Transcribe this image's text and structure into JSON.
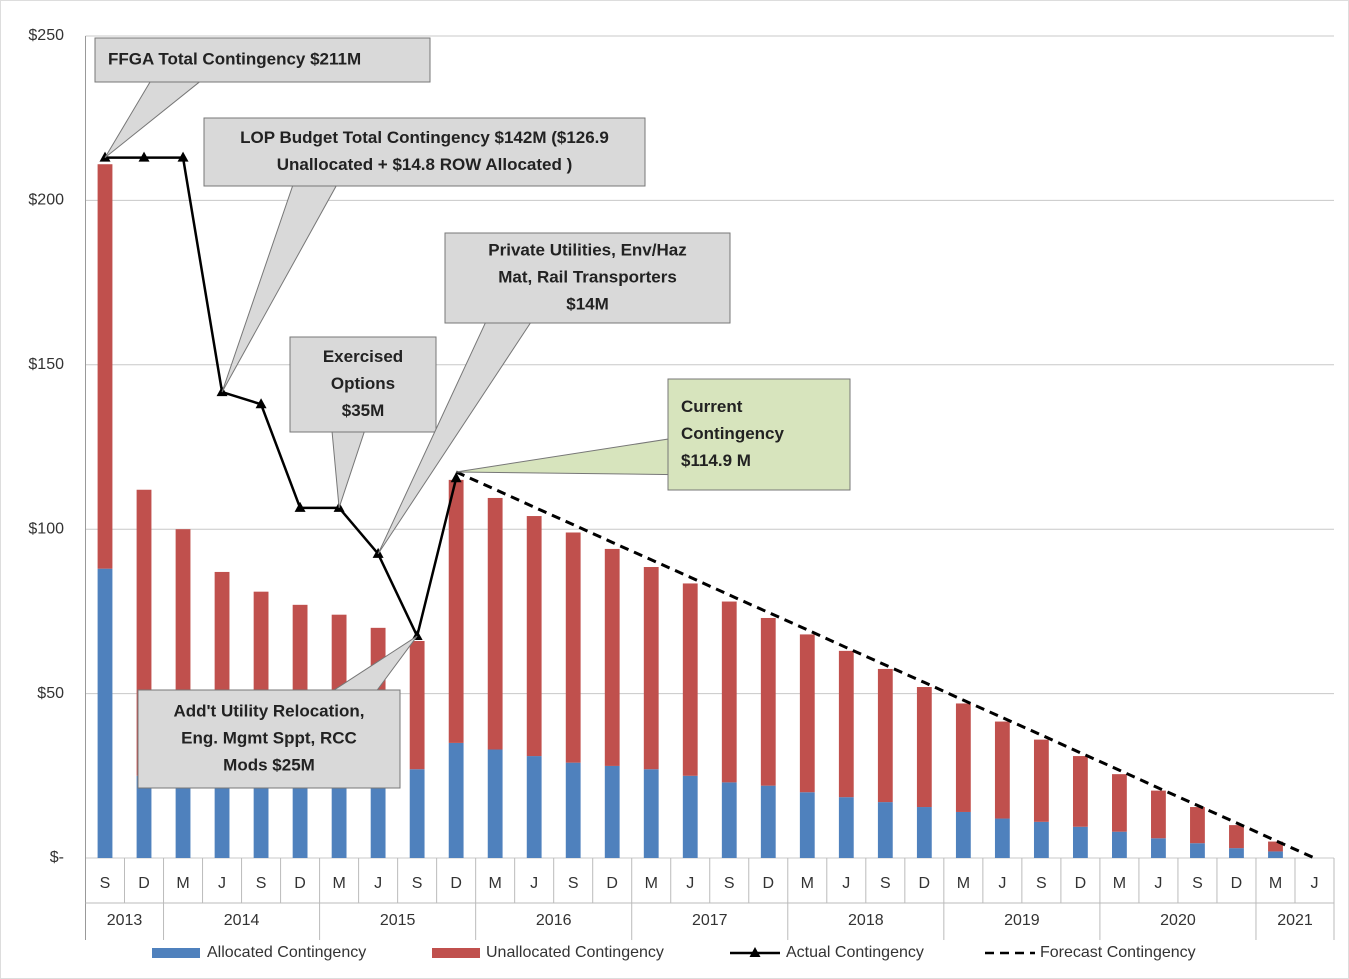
{
  "chart_data": {
    "type": "bar",
    "stacked": true,
    "groups": [
      {
        "label": "2013",
        "categories": [
          "S",
          "D"
        ]
      },
      {
        "label": "2014",
        "categories": [
          "M",
          "J",
          "S",
          "D"
        ]
      },
      {
        "label": "2015",
        "categories": [
          "M",
          "J",
          "S",
          "D"
        ]
      },
      {
        "label": "2016",
        "categories": [
          "M",
          "J",
          "S",
          "D"
        ]
      },
      {
        "label": "2017",
        "categories": [
          "M",
          "J",
          "S",
          "D"
        ]
      },
      {
        "label": "2018",
        "categories": [
          "M",
          "J",
          "S",
          "D"
        ]
      },
      {
        "label": "2019",
        "categories": [
          "M",
          "J",
          "S",
          "D"
        ]
      },
      {
        "label": "2020",
        "categories": [
          "M",
          "J",
          "S",
          "D"
        ]
      },
      {
        "label": "2021",
        "categories": [
          "M",
          "J"
        ]
      }
    ],
    "series": [
      {
        "name": "Allocated Contingency",
        "kind": "bar",
        "color": "#4f81bd",
        "values": [
          88,
          25,
          25,
          25,
          25,
          25,
          25,
          25,
          27,
          35,
          33,
          31,
          29,
          28,
          27,
          25,
          23,
          22,
          20,
          18.5,
          17,
          15.5,
          14,
          12,
          11,
          9.5,
          8,
          6,
          4.5,
          3,
          2,
          0
        ]
      },
      {
        "name": "Unallocated Contingency",
        "kind": "bar",
        "color": "#c0504d",
        "values": [
          123,
          87,
          75,
          62,
          56,
          52,
          49,
          45,
          39,
          80,
          76.5,
          73,
          70,
          66,
          61.5,
          58.5,
          55,
          51,
          48,
          44.5,
          40.5,
          36.5,
          33,
          29.5,
          25,
          21.5,
          17.5,
          14.5,
          11,
          7,
          3,
          0
        ]
      },
      {
        "name": "Actual Contingency",
        "kind": "line",
        "marker": "triangle",
        "color": "#000000",
        "values": [
          213,
          213,
          213,
          141.7,
          138,
          106.5,
          106.5,
          92.5,
          67.5,
          115.5,
          null,
          null,
          null,
          null,
          null,
          null,
          null,
          null,
          null,
          null,
          null,
          null,
          null,
          null,
          null,
          null,
          null,
          null,
          null,
          null,
          null,
          null
        ]
      },
      {
        "name": "Forecast Contingency",
        "kind": "line",
        "dashed": true,
        "color": "#000000",
        "values": [
          null,
          null,
          null,
          null,
          null,
          null,
          null,
          null,
          null,
          117.4,
          112.1,
          106.7,
          101.4,
          96.0,
          90.7,
          85.4,
          80.0,
          74.7,
          69.4,
          64.0,
          58.7,
          53.4,
          48.0,
          42.7,
          37.4,
          32.0,
          26.7,
          21.3,
          16.0,
          10.7,
          5.3,
          0
        ]
      }
    ],
    "ylim": [
      0,
      250
    ],
    "yticks": [
      {
        "value": 0,
        "label": "$-"
      },
      {
        "value": 50,
        "label": "$50"
      },
      {
        "value": 100,
        "label": "$100"
      },
      {
        "value": 150,
        "label": "$150"
      },
      {
        "value": 200,
        "label": "$200"
      },
      {
        "value": 250,
        "label": "$250"
      }
    ],
    "grid": true,
    "legend": "bottom",
    "annotations": [
      {
        "lines": [
          "FFGA Total Contingency $211M"
        ]
      },
      {
        "lines": [
          "LOP Budget Total Contingency $142M ($126.9",
          "Unallocated + $14.8 ROW Allocated )"
        ]
      },
      {
        "lines": [
          "Exercised",
          "Options",
          "$35M"
        ]
      },
      {
        "lines": [
          "Private Utilities,  Env/Haz",
          "Mat, Rail Transporters",
          "$14M"
        ]
      },
      {
        "lines": [
          "Current",
          "Contingency",
          "$114.9 M"
        ]
      },
      {
        "lines": [
          "Add't Utility Relocation,",
          "Eng. Mgmt Sppt, RCC",
          "Mods $25M"
        ]
      }
    ]
  }
}
